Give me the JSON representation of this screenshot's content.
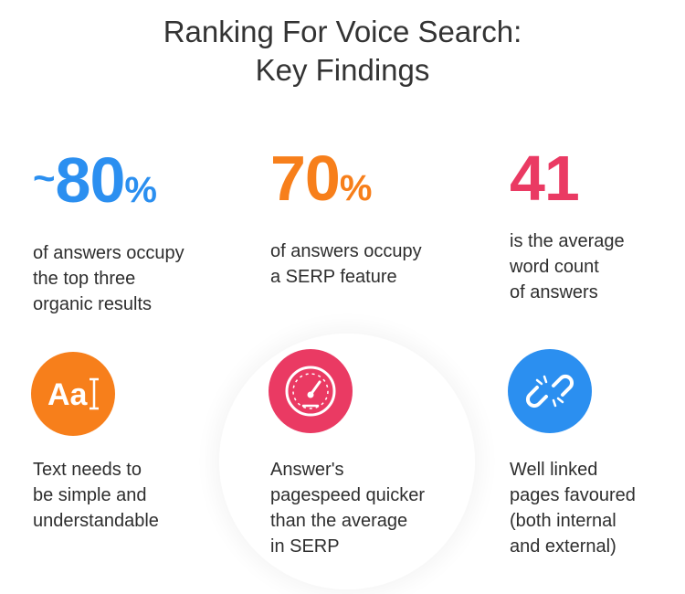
{
  "title": {
    "line1": "Ranking For Voice Search:",
    "line2": "Key Findings"
  },
  "colors": {
    "blue": "#2b8ff0",
    "orange": "#f77f1b",
    "pink": "#ea3a63"
  },
  "stats": [
    {
      "prefix": "~",
      "number": "80",
      "suffix": "%",
      "lines": [
        "of answers occupy",
        "the top three",
        "organic results"
      ]
    },
    {
      "prefix": "",
      "number": "70",
      "suffix": "%",
      "lines": [
        "of answers occupy",
        "a SERP feature"
      ]
    },
    {
      "prefix": "",
      "number": "41",
      "suffix": "",
      "lines": [
        "is the average",
        "word count",
        "of answers"
      ]
    }
  ],
  "findings": [
    {
      "icon": "text-font-icon",
      "icon_text": "Aa",
      "lines": [
        "Text needs to",
        "be simple and",
        "understandable"
      ]
    },
    {
      "icon": "speedometer-icon",
      "lines": [
        "Answer's",
        "pagespeed quicker",
        "than the average",
        "in SERP"
      ]
    },
    {
      "icon": "broken-link-icon",
      "lines": [
        "Well linked",
        "pages favoured",
        "(both internal",
        "and external)"
      ]
    }
  ]
}
